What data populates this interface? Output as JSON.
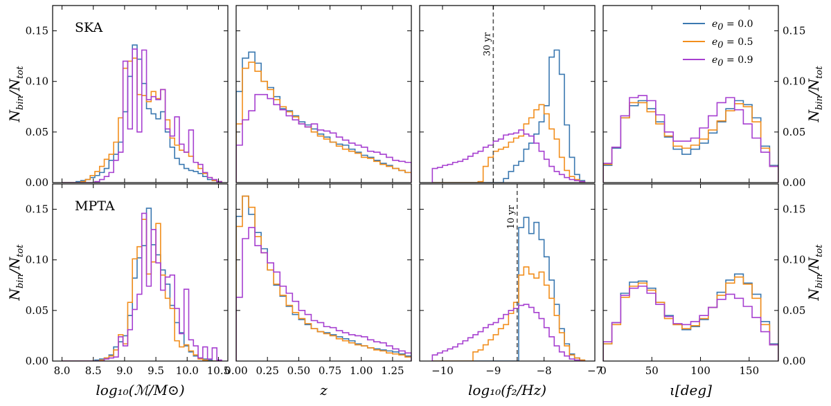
{
  "chart_data": {
    "type": "histogram-grid",
    "legend": [
      {
        "label": "e",
        "sub": "0",
        "tail": " = 0.0",
        "color": "#3a78b0"
      },
      {
        "label": "e",
        "sub": "0",
        "tail": " = 0.5",
        "color": "#f28e1c"
      },
      {
        "label": "e",
        "sub": "0",
        "tail": " = 0.9",
        "color": "#a63fd0"
      }
    ],
    "ylabel": {
      "main": "N",
      "sub1": "bin",
      "mid": "/N",
      "sub2": "tot"
    },
    "yticks": [
      "0.00",
      "0.05",
      "0.10",
      "0.15"
    ],
    "ylim": [
      0,
      0.175
    ],
    "rows": [
      {
        "name": "SKA",
        "vline": {
          "x": -9.0,
          "label": "30 yr"
        }
      },
      {
        "name": "MPTA",
        "vline": {
          "x": -8.53,
          "label": "10 yr"
        }
      }
    ],
    "columns": [
      {
        "xlabel": "log₁₀(ℳ/M⊙)",
        "xlim": [
          7.85,
          10.65
        ],
        "ticks": [
          8.0,
          8.5,
          9.0,
          9.5,
          10.0,
          10.5
        ],
        "tick_labels": [
          "8.0",
          "8.5",
          "9.0",
          "9.5",
          "10.0",
          "10.5"
        ],
        "bins": {
          "start": 8.0,
          "width": 0.075,
          "count": 34
        }
      },
      {
        "xlabel": "z",
        "xlim": [
          0.0,
          1.4
        ],
        "ticks": [
          0.0,
          0.25,
          0.5,
          0.75,
          1.0,
          1.25
        ],
        "tick_labels": [
          "0.00",
          "0.25",
          "0.50",
          "0.75",
          "1.00",
          "1.25"
        ],
        "bins": {
          "start": 0.0,
          "width": 0.05,
          "count": 28
        }
      },
      {
        "xlabel": "log₁₀(f₂/Hz)",
        "xlim": [
          -10.45,
          -7.0
        ],
        "ticks": [
          -10,
          -9,
          -8,
          -7
        ],
        "tick_labels": [
          "−10",
          "−9",
          "−8",
          "−7"
        ],
        "bins": {
          "start": -10.2,
          "width": 0.1,
          "count": 30
        }
      },
      {
        "xlabel": "ι[deg]",
        "xlim": [
          0,
          180
        ],
        "ticks": [
          0,
          50,
          100,
          150
        ],
        "tick_labels": [
          "0",
          "50",
          "100",
          "150"
        ],
        "bins": {
          "start": 0,
          "width": 9,
          "count": 20
        }
      }
    ],
    "series": [
      [
        [
          [
            0,
            0,
            0,
            0.001,
            0.002,
            0.003,
            0.005,
            0.007,
            0.01,
            0.014,
            0.022,
            0.028,
            0.04,
            0.07,
            0.105,
            0.136,
            0.122,
            0.098,
            0.073,
            0.068,
            0.063,
            0.07,
            0.05,
            0.035,
            0.024,
            0.018,
            0.014,
            0.012,
            0.011,
            0.009,
            0.006,
            0.003,
            0.002,
            0.001
          ],
          [
            0,
            0,
            0,
            0,
            0.001,
            0.003,
            0.007,
            0.011,
            0.016,
            0.023,
            0.028,
            0.04,
            0.064,
            0.113,
            0.12,
            0.123,
            0.087,
            0.086,
            0.08,
            0.09,
            0.083,
            0.092,
            0.062,
            0.044,
            0.037,
            0.032,
            0.03,
            0.026,
            0.02,
            0.014,
            0.009,
            0.005,
            0.002,
            0.001
          ],
          [
            0,
            0,
            0,
            0,
            0,
            0,
            0,
            0.001,
            0.003,
            0.006,
            0.01,
            0.022,
            0.03,
            0.12,
            0.053,
            0.132,
            0.05,
            0.131,
            0.082,
            0.085,
            0.082,
            0.092,
            0.053,
            0.046,
            0.065,
            0.038,
            0.03,
            0.052,
            0.02,
            0.018,
            0.01,
            0.005,
            0.003,
            0.001
          ]
        ],
        [
          [
            0.09,
            0.123,
            0.129,
            0.118,
            0.1,
            0.094,
            0.085,
            0.073,
            0.071,
            0.066,
            0.06,
            0.057,
            0.053,
            0.048,
            0.045,
            0.04,
            0.038,
            0.037,
            0.033,
            0.03,
            0.027,
            0.025,
            0.022,
            0.019,
            0.017,
            0.014,
            0.012,
            0.01
          ],
          [
            0.058,
            0.113,
            0.119,
            0.11,
            0.1,
            0.092,
            0.082,
            0.075,
            0.07,
            0.065,
            0.058,
            0.055,
            0.05,
            0.046,
            0.043,
            0.04,
            0.036,
            0.033,
            0.031,
            0.029,
            0.025,
            0.024,
            0.021,
            0.018,
            0.016,
            0.014,
            0.012,
            0.01
          ],
          [
            0.037,
            0.062,
            0.071,
            0.087,
            0.087,
            0.083,
            0.077,
            0.072,
            0.066,
            0.062,
            0.058,
            0.055,
            0.058,
            0.052,
            0.051,
            0.049,
            0.045,
            0.042,
            0.039,
            0.037,
            0.035,
            0.031,
            0.03,
            0.028,
            0.025,
            0.022,
            0.021,
            0.02
          ]
        ],
        [
          [
            0,
            0,
            0,
            0,
            0,
            0,
            0,
            0,
            0,
            0,
            0,
            0,
            0,
            0,
            0.004,
            0.011,
            0.017,
            0.021,
            0.033,
            0.039,
            0.048,
            0.06,
            0.076,
            0.124,
            0.131,
            0.107,
            0.057,
            0.025,
            0.008,
            0.002
          ],
          [
            0,
            0,
            0,
            0,
            0,
            0,
            0,
            0,
            0,
            0.001,
            0.016,
            0.025,
            0.031,
            0.033,
            0.035,
            0.04,
            0.044,
            0.046,
            0.058,
            0.064,
            0.072,
            0.077,
            0.068,
            0.053,
            0.043,
            0.025,
            0.012,
            0.006,
            0.003,
            0.001
          ],
          [
            0.014,
            0.015,
            0.017,
            0.018,
            0.02,
            0.021,
            0.023,
            0.026,
            0.029,
            0.031,
            0.035,
            0.037,
            0.041,
            0.043,
            0.047,
            0.048,
            0.049,
            0.052,
            0.048,
            0.046,
            0.039,
            0.031,
            0.023,
            0.016,
            0.011,
            0.008,
            0.005,
            0.003,
            0.002,
            0.001
          ]
        ],
        [
          [
            0.017,
            0.034,
            0.064,
            0.076,
            0.081,
            0.073,
            0.06,
            0.045,
            0.033,
            0.028,
            0.033,
            0.039,
            0.049,
            0.06,
            0.073,
            0.081,
            0.077,
            0.064,
            0.036,
            0.017
          ],
          [
            0.018,
            0.035,
            0.064,
            0.079,
            0.079,
            0.07,
            0.058,
            0.046,
            0.036,
            0.034,
            0.037,
            0.043,
            0.052,
            0.061,
            0.071,
            0.078,
            0.075,
            0.06,
            0.034,
            0.016
          ],
          [
            0.019,
            0.035,
            0.066,
            0.084,
            0.086,
            0.081,
            0.067,
            0.05,
            0.041,
            0.041,
            0.044,
            0.054,
            0.066,
            0.079,
            0.084,
            0.072,
            0.058,
            0.044,
            0.03,
            0.016
          ]
        ]
      ],
      [
        [
          [
            0,
            0,
            0,
            0,
            0,
            0,
            0,
            0.001,
            0.002,
            0.003,
            0.006,
            0.014,
            0.019,
            0.025,
            0.045,
            0.082,
            0.102,
            0.114,
            0.151,
            0.115,
            0.105,
            0.09,
            0.076,
            0.055,
            0.038,
            0.028,
            0.015,
            0.009,
            0.005,
            0.003,
            0.002,
            0.001,
            0,
            0
          ],
          [
            0,
            0,
            0,
            0,
            0,
            0,
            0,
            0,
            0.001,
            0.003,
            0.005,
            0.011,
            0.026,
            0.017,
            0.058,
            0.101,
            0.113,
            0.14,
            0.086,
            0.098,
            0.136,
            0.085,
            0.062,
            0.052,
            0.02,
            0.014,
            0.016,
            0.01,
            0.006,
            0.002,
            0.001,
            0,
            0,
            0
          ],
          [
            0,
            0,
            0,
            0,
            0,
            0,
            0,
            0,
            0,
            0.002,
            0.003,
            0.004,
            0.024,
            0.015,
            0.031,
            0.051,
            0.066,
            0.146,
            0.074,
            0.13,
            0.097,
            0.07,
            0.083,
            0.085,
            0.052,
            0.027,
            0.071,
            0.021,
            0.015,
            0.003,
            0.014,
            0.002,
            0.013,
            0.001
          ]
        ],
        [
          [
            0.143,
            0.163,
            0.145,
            0.127,
            0.111,
            0.09,
            0.075,
            0.064,
            0.054,
            0.046,
            0.041,
            0.036,
            0.032,
            0.029,
            0.028,
            0.026,
            0.024,
            0.022,
            0.02,
            0.017,
            0.015,
            0.013,
            0.012,
            0.011,
            0.01,
            0.009,
            0.007,
            0.005
          ],
          [
            0.133,
            0.163,
            0.152,
            0.123,
            0.107,
            0.09,
            0.076,
            0.065,
            0.055,
            0.048,
            0.042,
            0.037,
            0.032,
            0.029,
            0.027,
            0.025,
            0.022,
            0.02,
            0.018,
            0.016,
            0.015,
            0.013,
            0.011,
            0.01,
            0.008,
            0.007,
            0.006,
            0.004
          ],
          [
            0.063,
            0.121,
            0.132,
            0.114,
            0.107,
            0.097,
            0.088,
            0.074,
            0.067,
            0.059,
            0.05,
            0.046,
            0.04,
            0.038,
            0.034,
            0.033,
            0.03,
            0.028,
            0.026,
            0.025,
            0.024,
            0.021,
            0.019,
            0.018,
            0.015,
            0.012,
            0.01,
            0.008
          ]
        ],
        [
          [
            0,
            0,
            0,
            0,
            0,
            0,
            0,
            0,
            0,
            0,
            0,
            0,
            0,
            0,
            0,
            0,
            0,
            0.132,
            0.142,
            0.126,
            0.137,
            0.12,
            0.103,
            0.08,
            0.056,
            0.032,
            0.017,
            0.007,
            0.003,
            0.001
          ],
          [
            0,
            0,
            0,
            0,
            0,
            0,
            0,
            0,
            0.009,
            0.011,
            0.016,
            0.021,
            0.026,
            0.032,
            0.036,
            0.047,
            0.058,
            0.085,
            0.093,
            0.086,
            0.082,
            0.088,
            0.075,
            0.062,
            0.045,
            0.028,
            0.015,
            0.006,
            0.003,
            0.001
          ],
          [
            0.006,
            0.008,
            0.01,
            0.012,
            0.014,
            0.017,
            0.02,
            0.023,
            0.026,
            0.029,
            0.033,
            0.036,
            0.038,
            0.042,
            0.046,
            0.05,
            0.052,
            0.055,
            0.056,
            0.053,
            0.048,
            0.042,
            0.033,
            0.024,
            0.015,
            0.009,
            0.005,
            0.002,
            0.001,
            0
          ]
        ],
        [
          [
            0.017,
            0.038,
            0.067,
            0.078,
            0.079,
            0.072,
            0.058,
            0.045,
            0.036,
            0.031,
            0.034,
            0.041,
            0.053,
            0.068,
            0.08,
            0.086,
            0.077,
            0.066,
            0.039,
            0.017
          ],
          [
            0.017,
            0.036,
            0.063,
            0.074,
            0.077,
            0.07,
            0.058,
            0.042,
            0.036,
            0.032,
            0.035,
            0.042,
            0.053,
            0.065,
            0.077,
            0.083,
            0.076,
            0.062,
            0.036,
            0.016
          ],
          [
            0.019,
            0.038,
            0.065,
            0.072,
            0.074,
            0.067,
            0.056,
            0.044,
            0.037,
            0.036,
            0.039,
            0.045,
            0.053,
            0.061,
            0.066,
            0.062,
            0.054,
            0.043,
            0.029,
            0.016
          ]
        ]
      ]
    ]
  }
}
